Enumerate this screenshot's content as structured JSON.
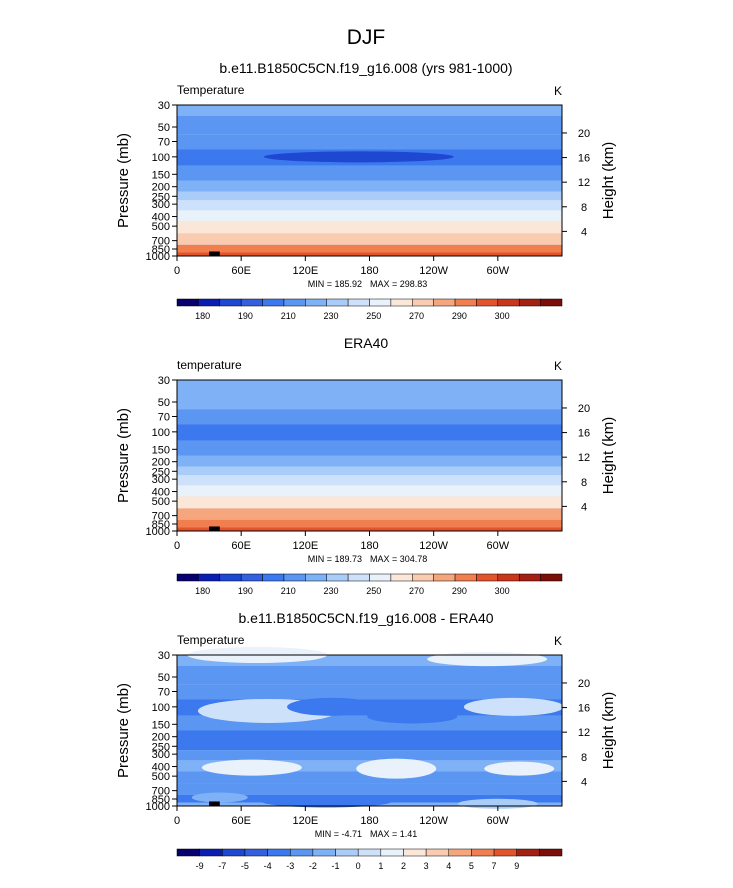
{
  "season_title": "DJF",
  "panels": [
    {
      "title": "b.e11.B1850C5CN.f19_g16.008 (yrs 981-1000)",
      "var_label": "Temperature",
      "units": "K",
      "ylabel": "Pressure (mb)",
      "ylabel_right": "Height (km)",
      "min_label": "MIN = 185.92",
      "max_label": "MAX = 298.83",
      "palette": "abs",
      "field": [
        {
          "p": 30,
          "v": 215
        },
        {
          "p": 50,
          "v": 207
        },
        {
          "p": 70,
          "v": 200
        },
        {
          "p": 100,
          "v": 195
        },
        {
          "p": 150,
          "v": 205
        },
        {
          "p": 200,
          "v": 214
        },
        {
          "p": 250,
          "v": 222
        },
        {
          "p": 300,
          "v": 230
        },
        {
          "p": 400,
          "v": 243
        },
        {
          "p": 500,
          "v": 252
        },
        {
          "p": 700,
          "v": 268
        },
        {
          "p": 850,
          "v": 280
        },
        {
          "p": 1000,
          "v": 290
        }
      ],
      "cold_core_band": [
        1
      ]
    },
    {
      "title": "ERA40",
      "var_label": "temperature",
      "units": "K",
      "ylabel": "Pressure (mb)",
      "ylabel_right": "Height (km)",
      "min_label": "MIN = 189.73",
      "max_label": "MAX = 304.78",
      "palette": "abs",
      "field": [
        {
          "p": 30,
          "v": 218
        },
        {
          "p": 50,
          "v": 210
        },
        {
          "p": 70,
          "v": 202
        },
        {
          "p": 100,
          "v": 197
        },
        {
          "p": 150,
          "v": 205
        },
        {
          "p": 200,
          "v": 214
        },
        {
          "p": 250,
          "v": 222
        },
        {
          "p": 300,
          "v": 230
        },
        {
          "p": 400,
          "v": 244
        },
        {
          "p": 500,
          "v": 254
        },
        {
          "p": 700,
          "v": 270
        },
        {
          "p": 850,
          "v": 283
        },
        {
          "p": 1000,
          "v": 294
        }
      ],
      "cold_core_band": []
    },
    {
      "title": "b.e11.B1850C5CN.f19_g16.008 - ERA40",
      "var_label": "Temperature",
      "units": "K",
      "ylabel": "Pressure (mb)",
      "ylabel_right": "Height (km)",
      "min_label": "MIN = -4.71",
      "max_label": "MAX = 1.41",
      "palette": "diff",
      "field": [
        {
          "p": 30,
          "v": -1.5
        },
        {
          "p": 50,
          "v": -2.5
        },
        {
          "p": 70,
          "v": -2.5
        },
        {
          "p": 100,
          "v": -3.5
        },
        {
          "p": 150,
          "v": -2.5
        },
        {
          "p": 200,
          "v": -3.5
        },
        {
          "p": 250,
          "v": -3.5
        },
        {
          "p": 300,
          "v": -2.5
        },
        {
          "p": 400,
          "v": -1.5
        },
        {
          "p": 500,
          "v": -2.5
        },
        {
          "p": 700,
          "v": -2.5
        },
        {
          "p": 850,
          "v": -3.5
        },
        {
          "p": 1000,
          "v": -1.5
        }
      ],
      "cold_core_band": []
    }
  ],
  "chart_data": {
    "type": "heatmap",
    "x_ticks": [
      "0",
      "60E",
      "120E",
      "180",
      "120W",
      "60W"
    ],
    "x_tick_lons": [
      0,
      60,
      120,
      180,
      240,
      300
    ],
    "xlim": [
      0,
      360
    ],
    "y_ticks": [
      30,
      50,
      70,
      100,
      150,
      200,
      250,
      300,
      400,
      500,
      700,
      850,
      1000
    ],
    "ylim": [
      1000,
      30
    ],
    "y_scale": "log",
    "height_ticks_km": [
      4,
      8,
      12,
      16,
      20
    ],
    "abs_colorbar": {
      "levels": [
        175,
        180,
        185,
        190,
        200,
        210,
        220,
        230,
        240,
        250,
        260,
        270,
        280,
        290,
        295,
        300
      ],
      "labels": [
        "180",
        "190",
        "210",
        "230",
        "250",
        "270",
        "290",
        "300"
      ],
      "colors": [
        "#08006e",
        "#0b1eb4",
        "#1e47d2",
        "#3460e0",
        "#3c78ee",
        "#5a96f2",
        "#7fb1f6",
        "#a9cdf8",
        "#cde2fa",
        "#e9f1fb",
        "#fbe7d8",
        "#f9cbb0",
        "#f6a67d",
        "#f17e4f",
        "#e3542d",
        "#c8361e",
        "#a42012",
        "#7c0e09"
      ]
    },
    "diff_colorbar": {
      "levels": [
        -9,
        -7,
        -5,
        -4,
        -3,
        -2,
        -1,
        0,
        1,
        2,
        3,
        4,
        5,
        7,
        9
      ],
      "labels": [
        "-9",
        "-7",
        "-5",
        "-4",
        "-3",
        "-2",
        "-1",
        "0",
        "1",
        "2",
        "3",
        "4",
        "5",
        "7",
        "9"
      ],
      "colors": [
        "#08006e",
        "#0b1eb4",
        "#1e47d2",
        "#3460e0",
        "#3c78ee",
        "#5a96f2",
        "#7fb1f6",
        "#a9cdf8",
        "#cde2fa",
        "#e9f1fb",
        "#fbe7d8",
        "#f9cbb0",
        "#f6a67d",
        "#f17e4f",
        "#e3542d",
        "#a42012",
        "#7c0e09"
      ]
    }
  }
}
